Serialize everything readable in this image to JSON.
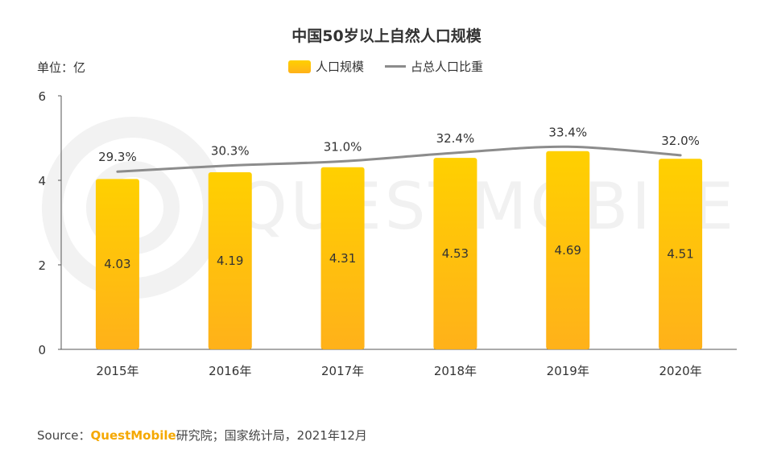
{
  "header": {
    "title": "中国50岁以上自然人口规模",
    "unit": "单位：亿"
  },
  "footer": {
    "source_label": "Source：",
    "brand": "QuestMobile",
    "source_rest": "研究院；国家统计局，2021年12月"
  },
  "watermark": "QUESTMOBILE",
  "colors": {
    "bar_top": "#ffd000",
    "bar_bottom": "#ffb11a",
    "line": "#8c8c8c",
    "brand": "#f5a800"
  },
  "chart_data": {
    "type": "bar",
    "title": "中国50岁以上自然人口规模",
    "ylabel": "单位：亿",
    "categories": [
      "2015年",
      "2016年",
      "2017年",
      "2018年",
      "2019年",
      "2020年"
    ],
    "ylim": [
      0,
      6
    ],
    "yticks": [
      0,
      2,
      4,
      6
    ],
    "grid": false,
    "legend_position": "top-center",
    "series": [
      {
        "name": "人口规模",
        "type": "bar",
        "values": [
          4.03,
          4.19,
          4.31,
          4.53,
          4.69,
          4.51
        ],
        "labels": [
          "4.03",
          "4.19",
          "4.31",
          "4.53",
          "4.69",
          "4.51"
        ]
      },
      {
        "name": "占总人口比重",
        "type": "line",
        "values": [
          29.3,
          30.3,
          31.0,
          32.4,
          33.4,
          32.0
        ],
        "labels": [
          "29.3%",
          "30.3%",
          "31.0%",
          "32.4%",
          "33.4%",
          "32.0%"
        ]
      }
    ]
  }
}
